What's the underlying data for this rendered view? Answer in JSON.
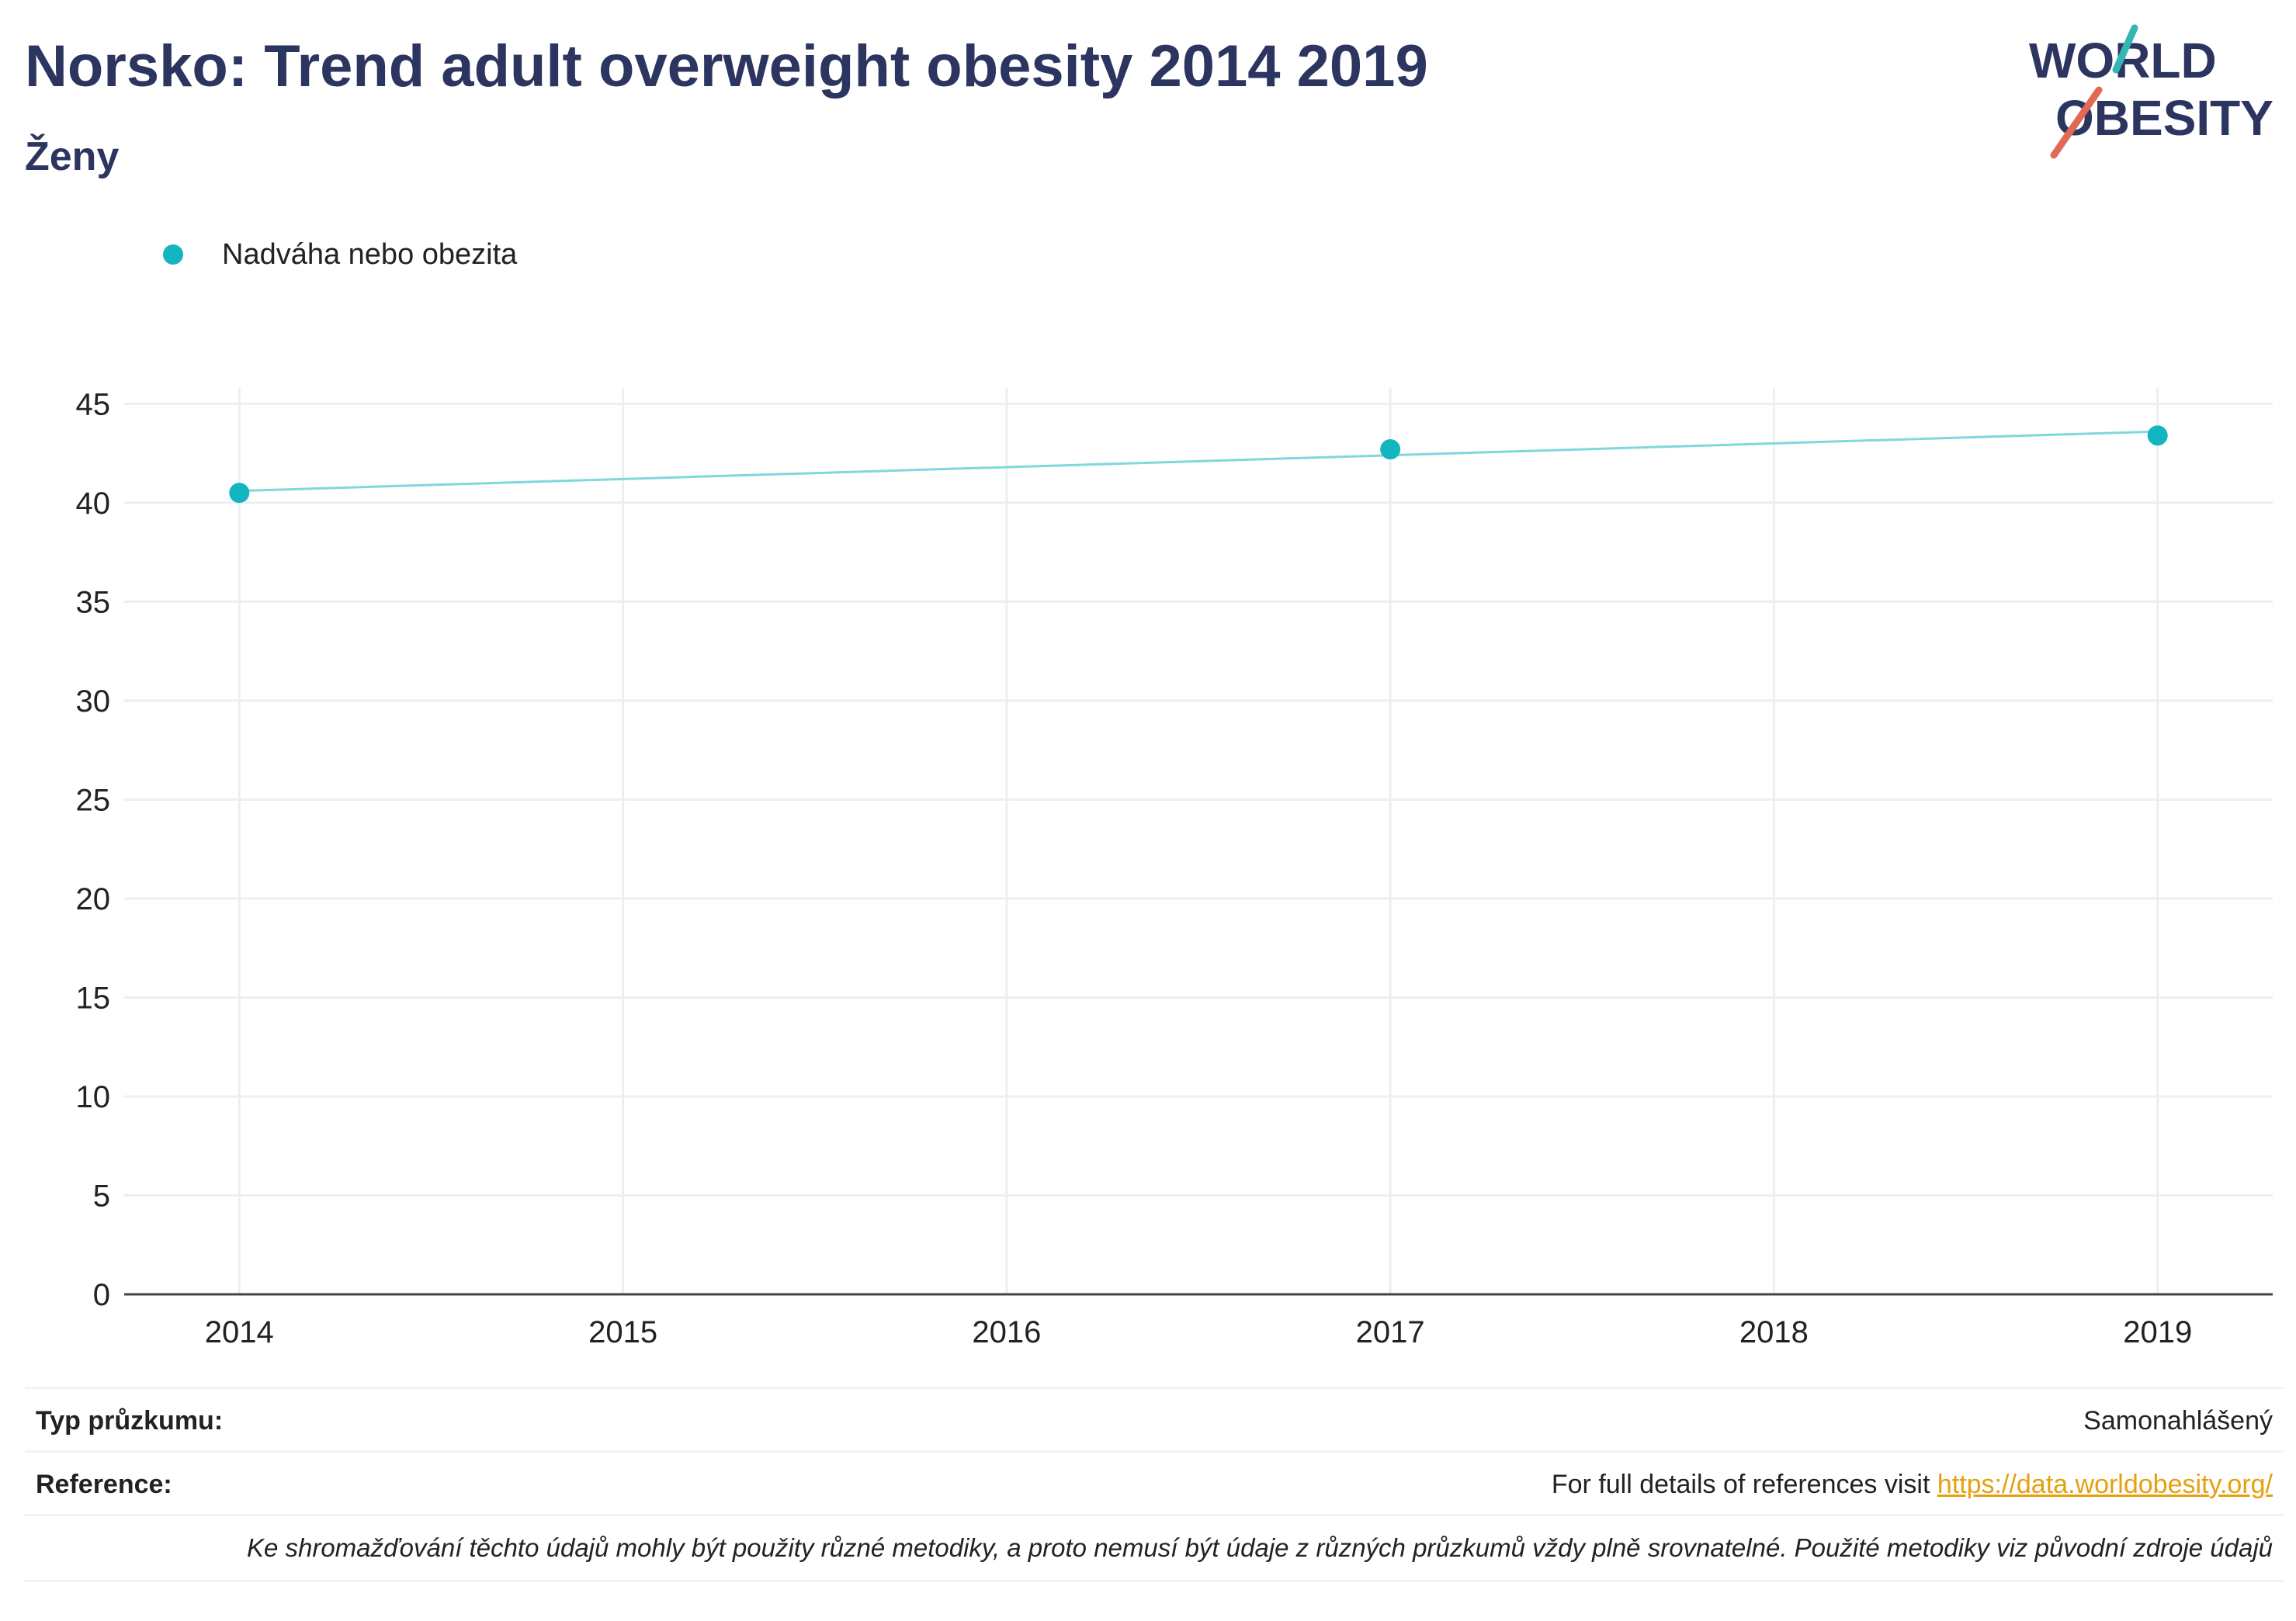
{
  "header": {
    "title": "Norsko: Trend adult overweight obesity 2014 2019",
    "subtitle": "Ženy",
    "logo_line1": "WORLD",
    "logo_line2": "OBESITY"
  },
  "colors": {
    "title": "#2b3560",
    "series": "#13b5c1",
    "series_line": "#7fd8dc",
    "grid": "#eceff2",
    "logo_teal": "#36b6b3",
    "logo_coral": "#e06a55",
    "link": "#e5a00f"
  },
  "chart_data": {
    "type": "line",
    "x": [
      2014,
      2017,
      2019
    ],
    "series": [
      {
        "name": "Nadváha nebo obezita",
        "values": [
          40.5,
          42.7,
          43.4
        ],
        "color": "#13b5c1"
      }
    ],
    "trend_line": {
      "x": [
        2014,
        2019
      ],
      "y": [
        40.6,
        43.6
      ]
    },
    "x_ticks": [
      "2014",
      "2015",
      "2016",
      "2017",
      "2018",
      "2019"
    ],
    "xlim": [
      2013.7,
      2019.3
    ],
    "y_ticks": [
      "0",
      "5",
      "10",
      "15",
      "20",
      "25",
      "30",
      "35",
      "40",
      "45"
    ],
    "ylim": [
      0,
      45.8
    ],
    "grid": true,
    "legend_position": "top-left"
  },
  "footer": {
    "survey_label": "Typ průzkumu:",
    "survey_value": "Samonahlášený",
    "reference_label": "Reference:",
    "reference_text": "For full details of references visit ",
    "reference_link": "https://data.worldobesity.org/",
    "note": "Ke shromažďování těchto údajů mohly být použity různé metodiky, a proto nemusí být údaje z různých průzkumů vždy plně srovnatelné. Použité metodiky viz původní zdroje údajů"
  }
}
